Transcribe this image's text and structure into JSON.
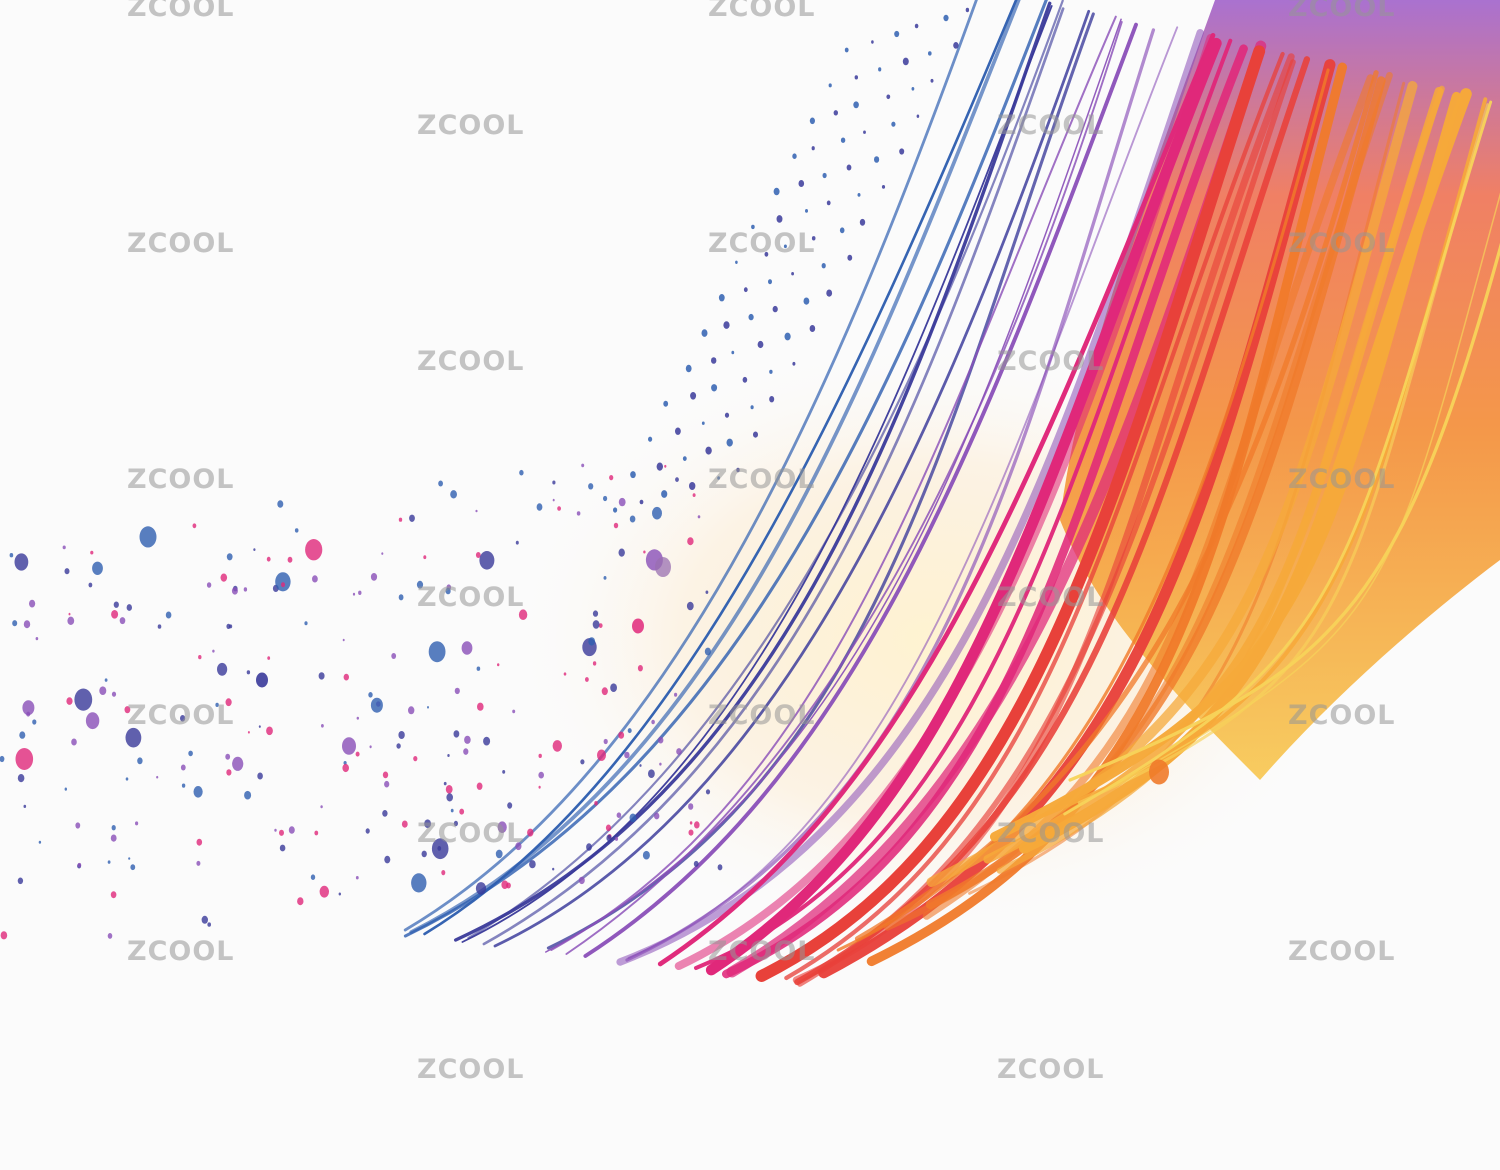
{
  "watermark": {
    "text": "ZCOOL",
    "color": "#969696"
  },
  "palette": {
    "background": "#fbfbfb",
    "blue": "#2f5fb0",
    "indigo": "#3a3a9a",
    "purple": "#8a4fb8",
    "magenta": "#e0287a",
    "red": "#e8413a",
    "orange": "#f07a2a",
    "amber": "#f6a93a",
    "yellow": "#f7d35a"
  }
}
